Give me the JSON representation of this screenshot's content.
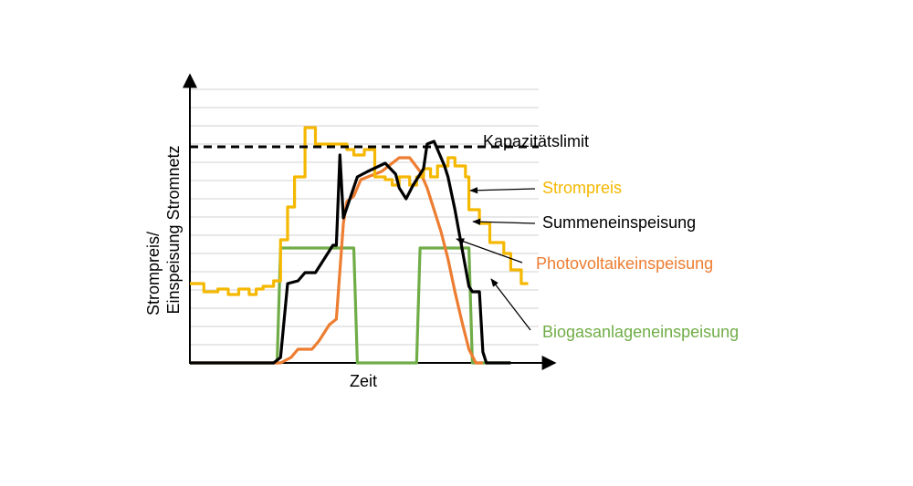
{
  "chart_data": {
    "type": "line",
    "xlabel": "Zeit",
    "ylabel_line1": "Strompreis/",
    "ylabel_line2": "Einspeisung Stromnetz",
    "xlim": [
      0,
      100
    ],
    "ylim": [
      0,
      100
    ],
    "grid": "horizontal",
    "legend": "right, with arrows pointing to curves",
    "colors": {
      "strompreis": "#F5B800",
      "summe": "#000000",
      "pv": "#ED7D31",
      "biogas": "#70AD47",
      "limit": "#000000",
      "grid": "#D0D0D0"
    },
    "limit": {
      "label": "Kapazitätslimit",
      "value": 79
    },
    "series": [
      {
        "key": "strompreis",
        "name": "Strompreis",
        "x": [
          0,
          4,
          4,
          8,
          8,
          11,
          11,
          14,
          14,
          17,
          17,
          19,
          19,
          21,
          21,
          24,
          24,
          26,
          26,
          28,
          28,
          30,
          30,
          33,
          33,
          36,
          36,
          45,
          45,
          47,
          47,
          50,
          50,
          53,
          53,
          56,
          56,
          58,
          58,
          60,
          60,
          63,
          63,
          65,
          65,
          67,
          67,
          69,
          69,
          71,
          71,
          74,
          74,
          76,
          76,
          79,
          79,
          80,
          80,
          83,
          83,
          86,
          86,
          90,
          90,
          92,
          92,
          95,
          95,
          97
        ],
        "y": [
          29,
          29,
          26,
          26,
          27,
          27,
          25,
          25,
          27,
          27,
          25,
          25,
          27,
          27,
          28,
          28,
          30,
          30,
          45,
          45,
          57,
          57,
          68,
          68,
          86,
          86,
          80,
          80,
          78,
          78,
          76,
          76,
          78,
          78,
          68,
          68,
          67,
          67,
          65,
          65,
          68,
          68,
          65,
          65,
          68,
          68,
          71,
          71,
          68,
          68,
          72,
          72,
          75,
          75,
          72,
          72,
          68,
          68,
          56,
          56,
          51,
          51,
          44,
          44,
          40,
          40,
          34,
          34,
          29,
          29
        ]
      },
      {
        "key": "summe",
        "name": "Summeneinspeisung",
        "x": [
          0,
          24,
          26,
          28,
          31,
          33,
          36,
          39,
          41,
          42,
          43,
          44,
          48,
          51,
          56,
          59,
          60,
          62,
          64,
          67,
          68,
          70,
          73,
          74,
          76,
          80,
          81,
          83,
          84,
          85,
          86,
          92
        ],
        "y": [
          0,
          0,
          2,
          29,
          30,
          33,
          33,
          39,
          43,
          43,
          76,
          53,
          68,
          70,
          73,
          69,
          64,
          60,
          65,
          71,
          80,
          81,
          72,
          68,
          56,
          28,
          26,
          26,
          4,
          0,
          0,
          0
        ]
      },
      {
        "key": "pv",
        "name": "Photovoltaikeinspeisung",
        "x": [
          0,
          24,
          26,
          29,
          31,
          35,
          37,
          40,
          42,
          44,
          45,
          47,
          49,
          51,
          55,
          57,
          60,
          63,
          66,
          68,
          70,
          72,
          74,
          76,
          78,
          80,
          82,
          84
        ],
        "y": [
          0,
          0,
          0,
          2,
          5,
          5,
          8,
          14,
          16,
          51,
          59,
          61,
          67,
          68,
          70,
          72,
          75,
          75,
          70,
          64,
          56,
          48,
          38,
          26,
          15,
          5,
          0,
          0
        ]
      },
      {
        "key": "biogas",
        "name": "Biogasanlageneinspeisung",
        "x": [
          0,
          25,
          26,
          47,
          48,
          65,
          66,
          80,
          81,
          92
        ],
        "y": [
          0,
          0,
          42,
          42,
          0,
          0,
          42,
          42,
          0,
          0
        ]
      }
    ]
  }
}
